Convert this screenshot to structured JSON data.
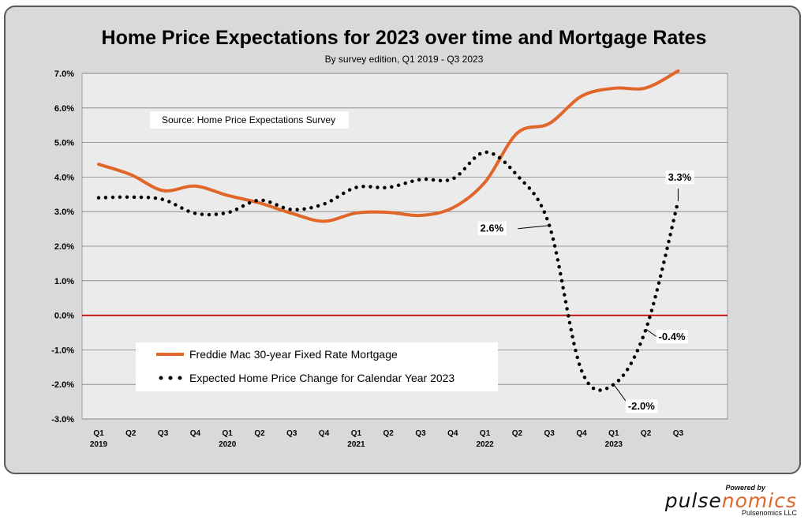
{
  "header": {
    "title": "Home Price Expectations for 2023 over time and Mortgage Rates",
    "subtitle": "By survey edition, Q1 2019 - Q3 2023"
  },
  "source_note": "Source: Home Price Expectations Survey",
  "branding": {
    "powered_by": "Powered by",
    "logo_part1": "pulse",
    "logo_part2": "nomics",
    "company": "Pulsenomics LLC",
    "logo_accent_color": "#e0662a"
  },
  "chart_data": {
    "type": "line",
    "title": "Home Price Expectations for 2023 over time and Mortgage Rates",
    "subtitle": "By survey edition, Q1 2019 - Q3 2023",
    "categories": [
      "Q1",
      "Q2",
      "Q3",
      "Q4",
      "Q1",
      "Q2",
      "Q3",
      "Q4",
      "Q1",
      "Q2",
      "Q3",
      "Q4",
      "Q1",
      "Q2",
      "Q3",
      "Q4",
      "Q1",
      "Q2",
      "Q3"
    ],
    "years": [
      {
        "label": "2019",
        "index": 0
      },
      {
        "label": "2020",
        "index": 4
      },
      {
        "label": "2021",
        "index": 8
      },
      {
        "label": "2022",
        "index": 12
      },
      {
        "label": "2023",
        "index": 16
      }
    ],
    "ylim": [
      -3.0,
      7.0
    ],
    "yticks": [
      -3.0,
      -2.0,
      -1.0,
      0.0,
      1.0,
      2.0,
      3.0,
      4.0,
      5.0,
      6.0,
      7.0
    ],
    "ytick_labels": [
      "-3.0%",
      "-2.0%",
      "-1.0%",
      "0.0%",
      "1.0%",
      "2.0%",
      "3.0%",
      "4.0%",
      "5.0%",
      "6.0%",
      "7.0%"
    ],
    "grid": true,
    "legend_position": "bottom-left",
    "series": [
      {
        "name": "Freddie Mac 30-year Fixed Rate Mortgage",
        "style": "solid",
        "color": "#e0662a",
        "values": [
          4.37,
          4.07,
          3.61,
          3.74,
          3.47,
          3.25,
          2.95,
          2.72,
          2.96,
          2.98,
          2.89,
          3.11,
          3.85,
          5.27,
          5.55,
          6.34,
          6.57,
          6.58,
          7.07
        ]
      },
      {
        "name": "Expected Home Price Change for Calendar Year 2023",
        "style": "dotted",
        "color": "#000000",
        "values": [
          3.4,
          3.42,
          3.35,
          2.95,
          2.97,
          3.33,
          3.06,
          3.22,
          3.7,
          3.7,
          3.93,
          3.95,
          4.72,
          4.05,
          2.6,
          -1.6,
          -2.0,
          -0.4,
          3.3
        ]
      }
    ],
    "annotations": [
      {
        "text": "2.6%",
        "index": 14,
        "value": 2.6
      },
      {
        "text": "-2.0%",
        "index": 16,
        "value": -2.0
      },
      {
        "text": "-0.4%",
        "index": 17,
        "value": -0.4
      },
      {
        "text": "3.3%",
        "index": 18,
        "value": 3.3
      }
    ],
    "zero_line_color": "#c00000"
  }
}
